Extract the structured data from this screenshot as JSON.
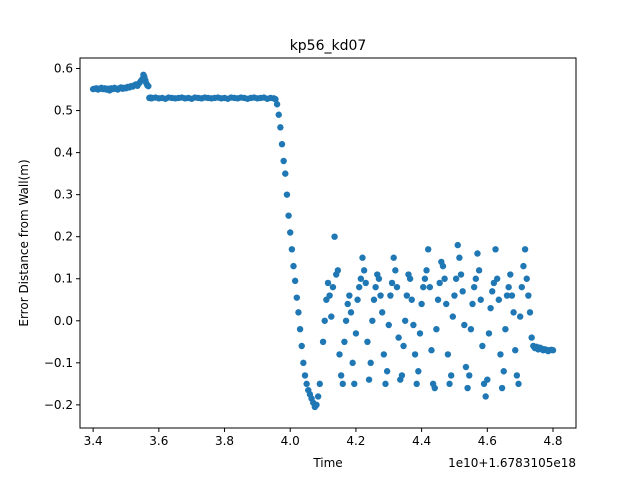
{
  "chart_data": {
    "type": "scatter",
    "title": "kp56_kd07",
    "xlabel": "Time",
    "ylabel": "Error Distance from Wall(m)",
    "x_offset_label": "1e10+1.6783105e18",
    "xlim": [
      3.36,
      4.87
    ],
    "ylim": [
      -0.255,
      0.625
    ],
    "grid": false,
    "x_ticks": [
      {
        "value": 3.4,
        "label": "3.4"
      },
      {
        "value": 3.6,
        "label": "3.6"
      },
      {
        "value": 3.8,
        "label": "3.8"
      },
      {
        "value": 4.0,
        "label": "4.0"
      },
      {
        "value": 4.2,
        "label": "4.2"
      },
      {
        "value": 4.4,
        "label": "4.4"
      },
      {
        "value": 4.6,
        "label": "4.6"
      },
      {
        "value": 4.8,
        "label": "4.8"
      }
    ],
    "y_ticks": [
      {
        "value": -0.2,
        "label": "−0.2"
      },
      {
        "value": -0.1,
        "label": "−0.1"
      },
      {
        "value": 0.0,
        "label": "0.0"
      },
      {
        "value": 0.1,
        "label": "0.1"
      },
      {
        "value": 0.2,
        "label": "0.2"
      },
      {
        "value": 0.3,
        "label": "0.3"
      },
      {
        "value": 0.4,
        "label": "0.4"
      },
      {
        "value": 0.5,
        "label": "0.5"
      },
      {
        "value": 0.6,
        "label": "0.6"
      }
    ],
    "marker_color": "#1f77b4",
    "series": [
      {
        "x": [
          3.4,
          3.405,
          3.41,
          3.415,
          3.42,
          3.425,
          3.43,
          3.435,
          3.44,
          3.445,
          3.45,
          3.455,
          3.46,
          3.465,
          3.47,
          3.475,
          3.48,
          3.485,
          3.49,
          3.495,
          3.5,
          3.505,
          3.51,
          3.515,
          3.52,
          3.525,
          3.53,
          3.535,
          3.54,
          3.545,
          3.55,
          3.553,
          3.556,
          3.559,
          3.562,
          3.565,
          3.568,
          3.571,
          3.574,
          3.577,
          3.58,
          3.59,
          3.6,
          3.61,
          3.62,
          3.63,
          3.64,
          3.65,
          3.66,
          3.67,
          3.68,
          3.69,
          3.7,
          3.71,
          3.72,
          3.73,
          3.74,
          3.75,
          3.76,
          3.77,
          3.78,
          3.79,
          3.8,
          3.81,
          3.82,
          3.83,
          3.84,
          3.85,
          3.86,
          3.87,
          3.88,
          3.89,
          3.9,
          3.91,
          3.92,
          3.93,
          3.94,
          3.95,
          3.955,
          3.96,
          3.965,
          3.97,
          3.975,
          3.98,
          3.985,
          3.99,
          3.995,
          4.0,
          4.005,
          4.01,
          4.015,
          4.02,
          4.025,
          4.03,
          4.035,
          4.04,
          4.045,
          4.05,
          4.055,
          4.06,
          4.065,
          4.07,
          4.075,
          4.08,
          4.085,
          4.09,
          4.1,
          4.105,
          4.11,
          4.115,
          4.12,
          4.125,
          4.13,
          4.135,
          4.14,
          4.145,
          4.15,
          4.155,
          4.16,
          4.165,
          4.17,
          4.175,
          4.18,
          4.185,
          4.19,
          4.195,
          4.2,
          4.205,
          4.21,
          4.215,
          4.22,
          4.225,
          4.23,
          4.235,
          4.24,
          4.245,
          4.25,
          4.255,
          4.26,
          4.265,
          4.27,
          4.275,
          4.28,
          4.285,
          4.29,
          4.295,
          4.3,
          4.305,
          4.31,
          4.315,
          4.32,
          4.325,
          4.33,
          4.335,
          4.34,
          4.345,
          4.35,
          4.355,
          4.36,
          4.365,
          4.37,
          4.375,
          4.38,
          4.385,
          4.39,
          4.395,
          4.4,
          4.405,
          4.41,
          4.415,
          4.42,
          4.425,
          4.43,
          4.435,
          4.44,
          4.445,
          4.45,
          4.455,
          4.46,
          4.465,
          4.47,
          4.475,
          4.48,
          4.485,
          4.49,
          4.495,
          4.5,
          4.505,
          4.51,
          4.515,
          4.52,
          4.525,
          4.53,
          4.535,
          4.54,
          4.545,
          4.55,
          4.555,
          4.56,
          4.565,
          4.57,
          4.575,
          4.58,
          4.585,
          4.59,
          4.595,
          4.6,
          4.605,
          4.61,
          4.615,
          4.62,
          4.625,
          4.63,
          4.635,
          4.64,
          4.645,
          4.65,
          4.655,
          4.66,
          4.665,
          4.67,
          4.675,
          4.68,
          4.685,
          4.69,
          4.695,
          4.7,
          4.705,
          4.71,
          4.715,
          4.72,
          4.725,
          4.73,
          4.735,
          4.74,
          4.745,
          4.75,
          4.755,
          4.76,
          4.765,
          4.77,
          4.775,
          4.78,
          4.785,
          4.79,
          4.795,
          4.8
        ],
        "y": [
          0.551,
          0.552,
          0.553,
          0.55,
          0.552,
          0.554,
          0.551,
          0.553,
          0.55,
          0.552,
          0.548,
          0.553,
          0.551,
          0.554,
          0.552,
          0.55,
          0.553,
          0.555,
          0.552,
          0.554,
          0.553,
          0.556,
          0.555,
          0.558,
          0.557,
          0.56,
          0.562,
          0.559,
          0.565,
          0.57,
          0.575,
          0.585,
          0.58,
          0.572,
          0.565,
          0.56,
          0.558,
          0.53,
          0.531,
          0.529,
          0.53,
          0.531,
          0.529,
          0.53,
          0.528,
          0.531,
          0.53,
          0.529,
          0.53,
          0.531,
          0.529,
          0.53,
          0.528,
          0.531,
          0.53,
          0.529,
          0.531,
          0.53,
          0.529,
          0.53,
          0.531,
          0.529,
          0.53,
          0.528,
          0.531,
          0.53,
          0.529,
          0.531,
          0.53,
          0.528,
          0.53,
          0.531,
          0.529,
          0.53,
          0.531,
          0.528,
          0.53,
          0.529,
          0.527,
          0.515,
          0.49,
          0.46,
          0.42,
          0.38,
          0.35,
          0.3,
          0.25,
          0.21,
          0.17,
          0.13,
          0.095,
          0.055,
          0.02,
          -0.02,
          -0.06,
          -0.1,
          -0.13,
          -0.15,
          -0.165,
          -0.175,
          -0.185,
          -0.195,
          -0.205,
          -0.2,
          -0.18,
          -0.15,
          -0.05,
          0.0,
          0.05,
          0.09,
          0.06,
          0.01,
          0.08,
          0.2,
          0.11,
          0.12,
          -0.08,
          -0.13,
          -0.15,
          -0.05,
          0.0,
          0.04,
          0.06,
          0.02,
          -0.1,
          -0.15,
          -0.03,
          0.05,
          0.08,
          0.1,
          0.15,
          0.12,
          0.09,
          -0.05,
          -0.14,
          -0.1,
          0.0,
          0.05,
          0.08,
          0.11,
          0.1,
          0.06,
          0.02,
          -0.08,
          -0.15,
          -0.12,
          -0.01,
          0.06,
          0.09,
          0.15,
          0.12,
          0.08,
          -0.04,
          -0.14,
          -0.13,
          -0.06,
          0.0,
          0.06,
          0.11,
          0.1,
          0.05,
          -0.01,
          -0.08,
          -0.15,
          -0.12,
          -0.03,
          0.04,
          0.08,
          0.1,
          0.12,
          0.17,
          0.08,
          -0.07,
          -0.15,
          -0.16,
          -0.02,
          0.05,
          0.09,
          0.14,
          0.13,
          0.1,
          0.04,
          -0.08,
          -0.15,
          -0.13,
          0.01,
          0.06,
          0.1,
          0.18,
          0.15,
          0.11,
          0.07,
          -0.01,
          -0.11,
          -0.16,
          -0.13,
          -0.02,
          0.04,
          0.08,
          0.1,
          0.16,
          0.12,
          0.05,
          -0.06,
          -0.15,
          -0.18,
          -0.14,
          -0.03,
          0.03,
          0.07,
          0.09,
          0.17,
          0.1,
          0.05,
          -0.08,
          -0.16,
          -0.12,
          -0.02,
          0.06,
          0.08,
          0.11,
          0.06,
          0.02,
          -0.07,
          -0.13,
          -0.15,
          0.01,
          0.08,
          0.13,
          0.17,
          0.1,
          0.06,
          0.02,
          -0.04,
          -0.06,
          -0.065,
          -0.062,
          -0.068,
          -0.064,
          -0.066,
          -0.07,
          -0.068,
          -0.069,
          -0.072,
          -0.07,
          -0.069,
          -0.07
        ]
      }
    ]
  }
}
